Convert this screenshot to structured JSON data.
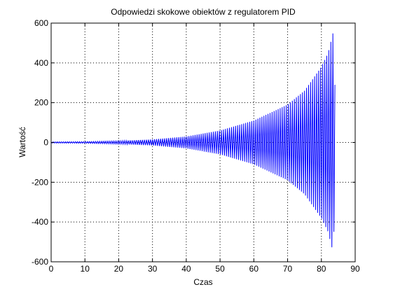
{
  "chart_data": {
    "type": "line",
    "title": "Odpowiedzi skokowe obiektów z regulatorem PID",
    "xlabel": "Czas",
    "ylabel": "Wartość",
    "xlim": [
      0,
      90
    ],
    "ylim": [
      -600,
      600
    ],
    "xticks": [
      0,
      10,
      20,
      30,
      40,
      50,
      60,
      70,
      80,
      90
    ],
    "yticks": [
      -600,
      -400,
      -200,
      0,
      200,
      400,
      600
    ],
    "xtick_labels": [
      "0",
      "10",
      "20",
      "30",
      "40",
      "50",
      "60",
      "70",
      "80",
      "90"
    ],
    "ytick_labels": [
      "-600",
      "-400",
      "-200",
      "0",
      "200",
      "400",
      "600"
    ],
    "grid": "dotted",
    "series": [
      {
        "color": "#0000ff",
        "description_points": {
          "x": [
            0,
            10,
            20,
            30,
            40,
            50,
            60,
            70,
            75,
            80,
            82,
            83.5,
            84
          ],
          "y_envelope": [
            3,
            4,
            8,
            15,
            30,
            60,
            110,
            190,
            260,
            380,
            450,
            555,
            290
          ]
        },
        "x_end": 84,
        "oscillation_period": 0.6
      }
    ]
  }
}
